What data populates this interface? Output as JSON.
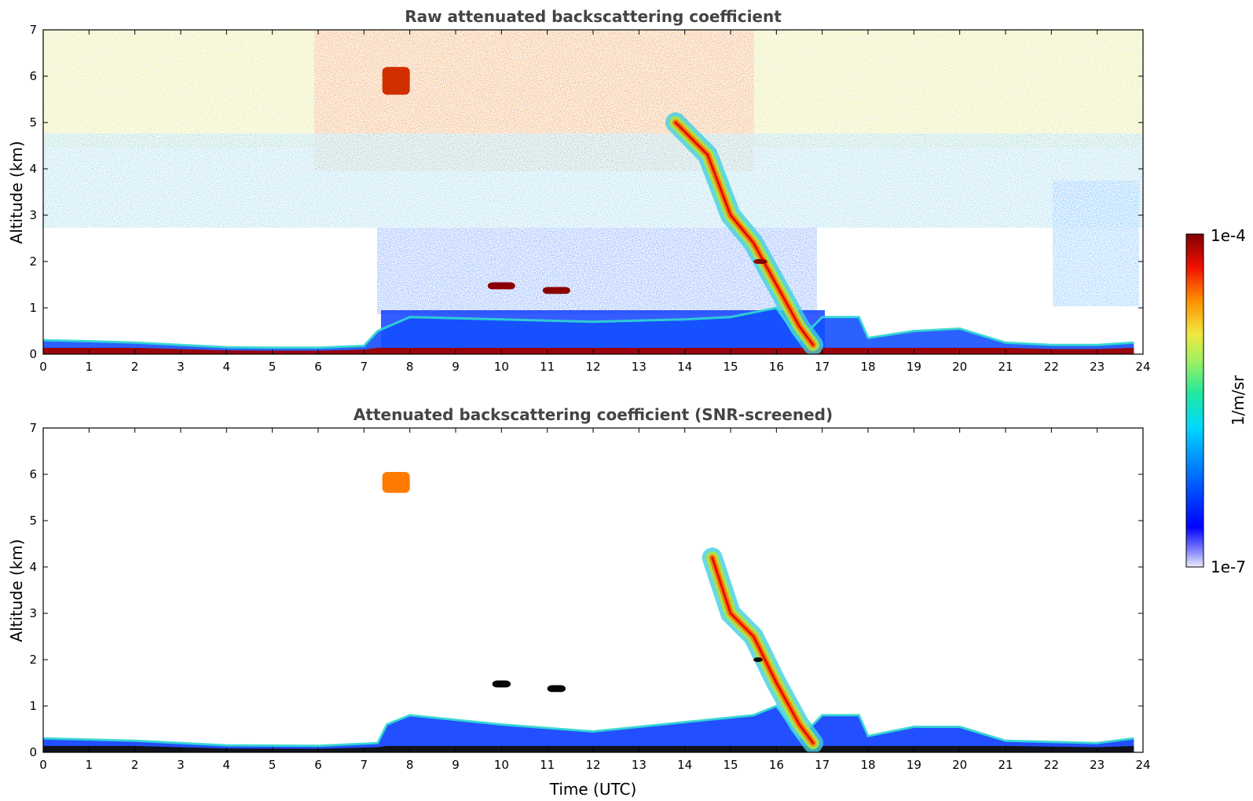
{
  "colors": {
    "colormap": [
      "#ececf8",
      "#0000ff",
      "#00aaff",
      "#00e5d0",
      "#7ce87a",
      "#e8e640",
      "#ff8c00",
      "#e01000",
      "#880000"
    ],
    "low_fill": "#ececf8",
    "axis": "#000000",
    "title_text": "#444444"
  },
  "chart_data": [
    {
      "type": "heatmap",
      "title": "Raw attenuated backscattering coefficient",
      "xlabel": "",
      "ylabel": "Altitude (km)",
      "xlim": [
        0,
        24
      ],
      "ylim": [
        0,
        7
      ],
      "xticks": [
        0,
        1,
        2,
        3,
        4,
        5,
        6,
        7,
        8,
        9,
        10,
        11,
        12,
        13,
        14,
        15,
        16,
        17,
        18,
        19,
        20,
        21,
        22,
        23,
        24
      ],
      "yticks": [
        0,
        1,
        2,
        3,
        4,
        5,
        6,
        7
      ],
      "features": {
        "boundary_layer_top_km": [
          [
            0,
            0.3
          ],
          [
            1,
            0.28
          ],
          [
            2,
            0.25
          ],
          [
            3,
            0.2
          ],
          [
            4,
            0.15
          ],
          [
            5,
            0.14
          ],
          [
            6,
            0.14
          ],
          [
            7,
            0.18
          ],
          [
            7.3,
            0.5
          ],
          [
            8,
            0.8
          ],
          [
            10,
            0.75
          ],
          [
            12,
            0.7
          ],
          [
            14,
            0.75
          ],
          [
            15,
            0.8
          ],
          [
            16,
            1.0
          ],
          [
            16.5,
            0.3
          ],
          [
            17,
            0.8
          ],
          [
            17.8,
            0.8
          ],
          [
            18,
            0.35
          ],
          [
            19,
            0.5
          ],
          [
            20,
            0.55
          ],
          [
            21,
            0.25
          ],
          [
            22,
            0.2
          ],
          [
            23,
            0.2
          ],
          [
            23.8,
            0.25
          ]
        ],
        "descending_plume_km": [
          [
            13.8,
            5.0
          ],
          [
            14.5,
            4.3
          ],
          [
            15,
            3.0
          ],
          [
            15.5,
            2.4
          ],
          [
            16,
            1.5
          ],
          [
            16.5,
            0.6
          ],
          [
            16.8,
            0.2
          ]
        ],
        "elevated_layers": [
          {
            "x": [
              7.4,
              8.0
            ],
            "y": [
              5.6,
              6.2
            ]
          },
          {
            "x": [
              9.7,
              10.3
            ],
            "y": [
              1.4,
              1.55
            ]
          },
          {
            "x": [
              10.9,
              11.5
            ],
            "y": [
              1.3,
              1.45
            ]
          },
          {
            "x": [
              15.5,
              15.8
            ],
            "y": [
              1.95,
              2.05
            ]
          }
        ],
        "noise_region": "high-altitude background noise throughout the upper atmosphere"
      }
    },
    {
      "type": "heatmap",
      "title": "Attenuated backscattering coefficient (SNR-screened)",
      "xlabel": "Time (UTC)",
      "ylabel": "Altitude (km)",
      "xlim": [
        0,
        24
      ],
      "ylim": [
        0,
        7
      ],
      "xticks": [
        0,
        1,
        2,
        3,
        4,
        5,
        6,
        7,
        8,
        9,
        10,
        11,
        12,
        13,
        14,
        15,
        16,
        17,
        18,
        19,
        20,
        21,
        22,
        23,
        24
      ],
      "yticks": [
        0,
        1,
        2,
        3,
        4,
        5,
        6,
        7
      ],
      "features": {
        "boundary_layer_top_km": [
          [
            0,
            0.3
          ],
          [
            2,
            0.25
          ],
          [
            4,
            0.15
          ],
          [
            6,
            0.14
          ],
          [
            7.3,
            0.2
          ],
          [
            7.5,
            0.6
          ],
          [
            8,
            0.8
          ],
          [
            10,
            0.6
          ],
          [
            12,
            0.45
          ],
          [
            14,
            0.65
          ],
          [
            15.5,
            0.8
          ],
          [
            16,
            1.0
          ],
          [
            16.5,
            0.3
          ],
          [
            17,
            0.8
          ],
          [
            17.8,
            0.8
          ],
          [
            18,
            0.35
          ],
          [
            19,
            0.55
          ],
          [
            20,
            0.55
          ],
          [
            21,
            0.25
          ],
          [
            23,
            0.2
          ],
          [
            23.8,
            0.3
          ]
        ],
        "descending_plume_km": [
          [
            14.6,
            4.2
          ],
          [
            15,
            3.0
          ],
          [
            15.5,
            2.5
          ],
          [
            16,
            1.5
          ],
          [
            16.5,
            0.6
          ],
          [
            16.8,
            0.2
          ]
        ],
        "elevated_layers": [
          {
            "x": [
              7.4,
              8.0
            ],
            "y": [
              5.6,
              6.05
            ]
          },
          {
            "x": [
              9.8,
              10.2
            ],
            "y": [
              1.4,
              1.55
            ]
          },
          {
            "x": [
              11.0,
              11.4
            ],
            "y": [
              1.3,
              1.45
            ]
          },
          {
            "x": [
              15.5,
              15.7
            ],
            "y": [
              1.95,
              2.05
            ]
          }
        ]
      }
    }
  ],
  "colorbar": {
    "max_label": "1e-4",
    "min_label": "1e-7",
    "unit_label": "1/m/sr"
  }
}
